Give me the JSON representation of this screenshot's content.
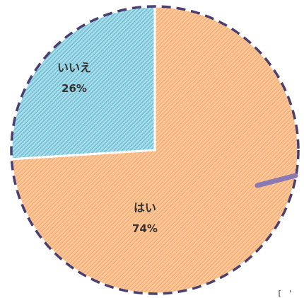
{
  "chart_data": {
    "type": "pie",
    "slices": [
      {
        "label": "はい",
        "value": 74,
        "value_label": "74%",
        "fill": "#fbc79b",
        "hatch": "#f39a52"
      },
      {
        "label": "いいえ",
        "value": 26,
        "value_label": "26%",
        "fill": "#a9dce9",
        "hatch": "#3ea6c4"
      }
    ],
    "outline_color": "#4b3f72",
    "start_angle_deg": 0,
    "direction": "clockwise"
  },
  "decor": {
    "arc_color": "#8b79b3",
    "corner_fragment": "[ ' ' '"
  }
}
